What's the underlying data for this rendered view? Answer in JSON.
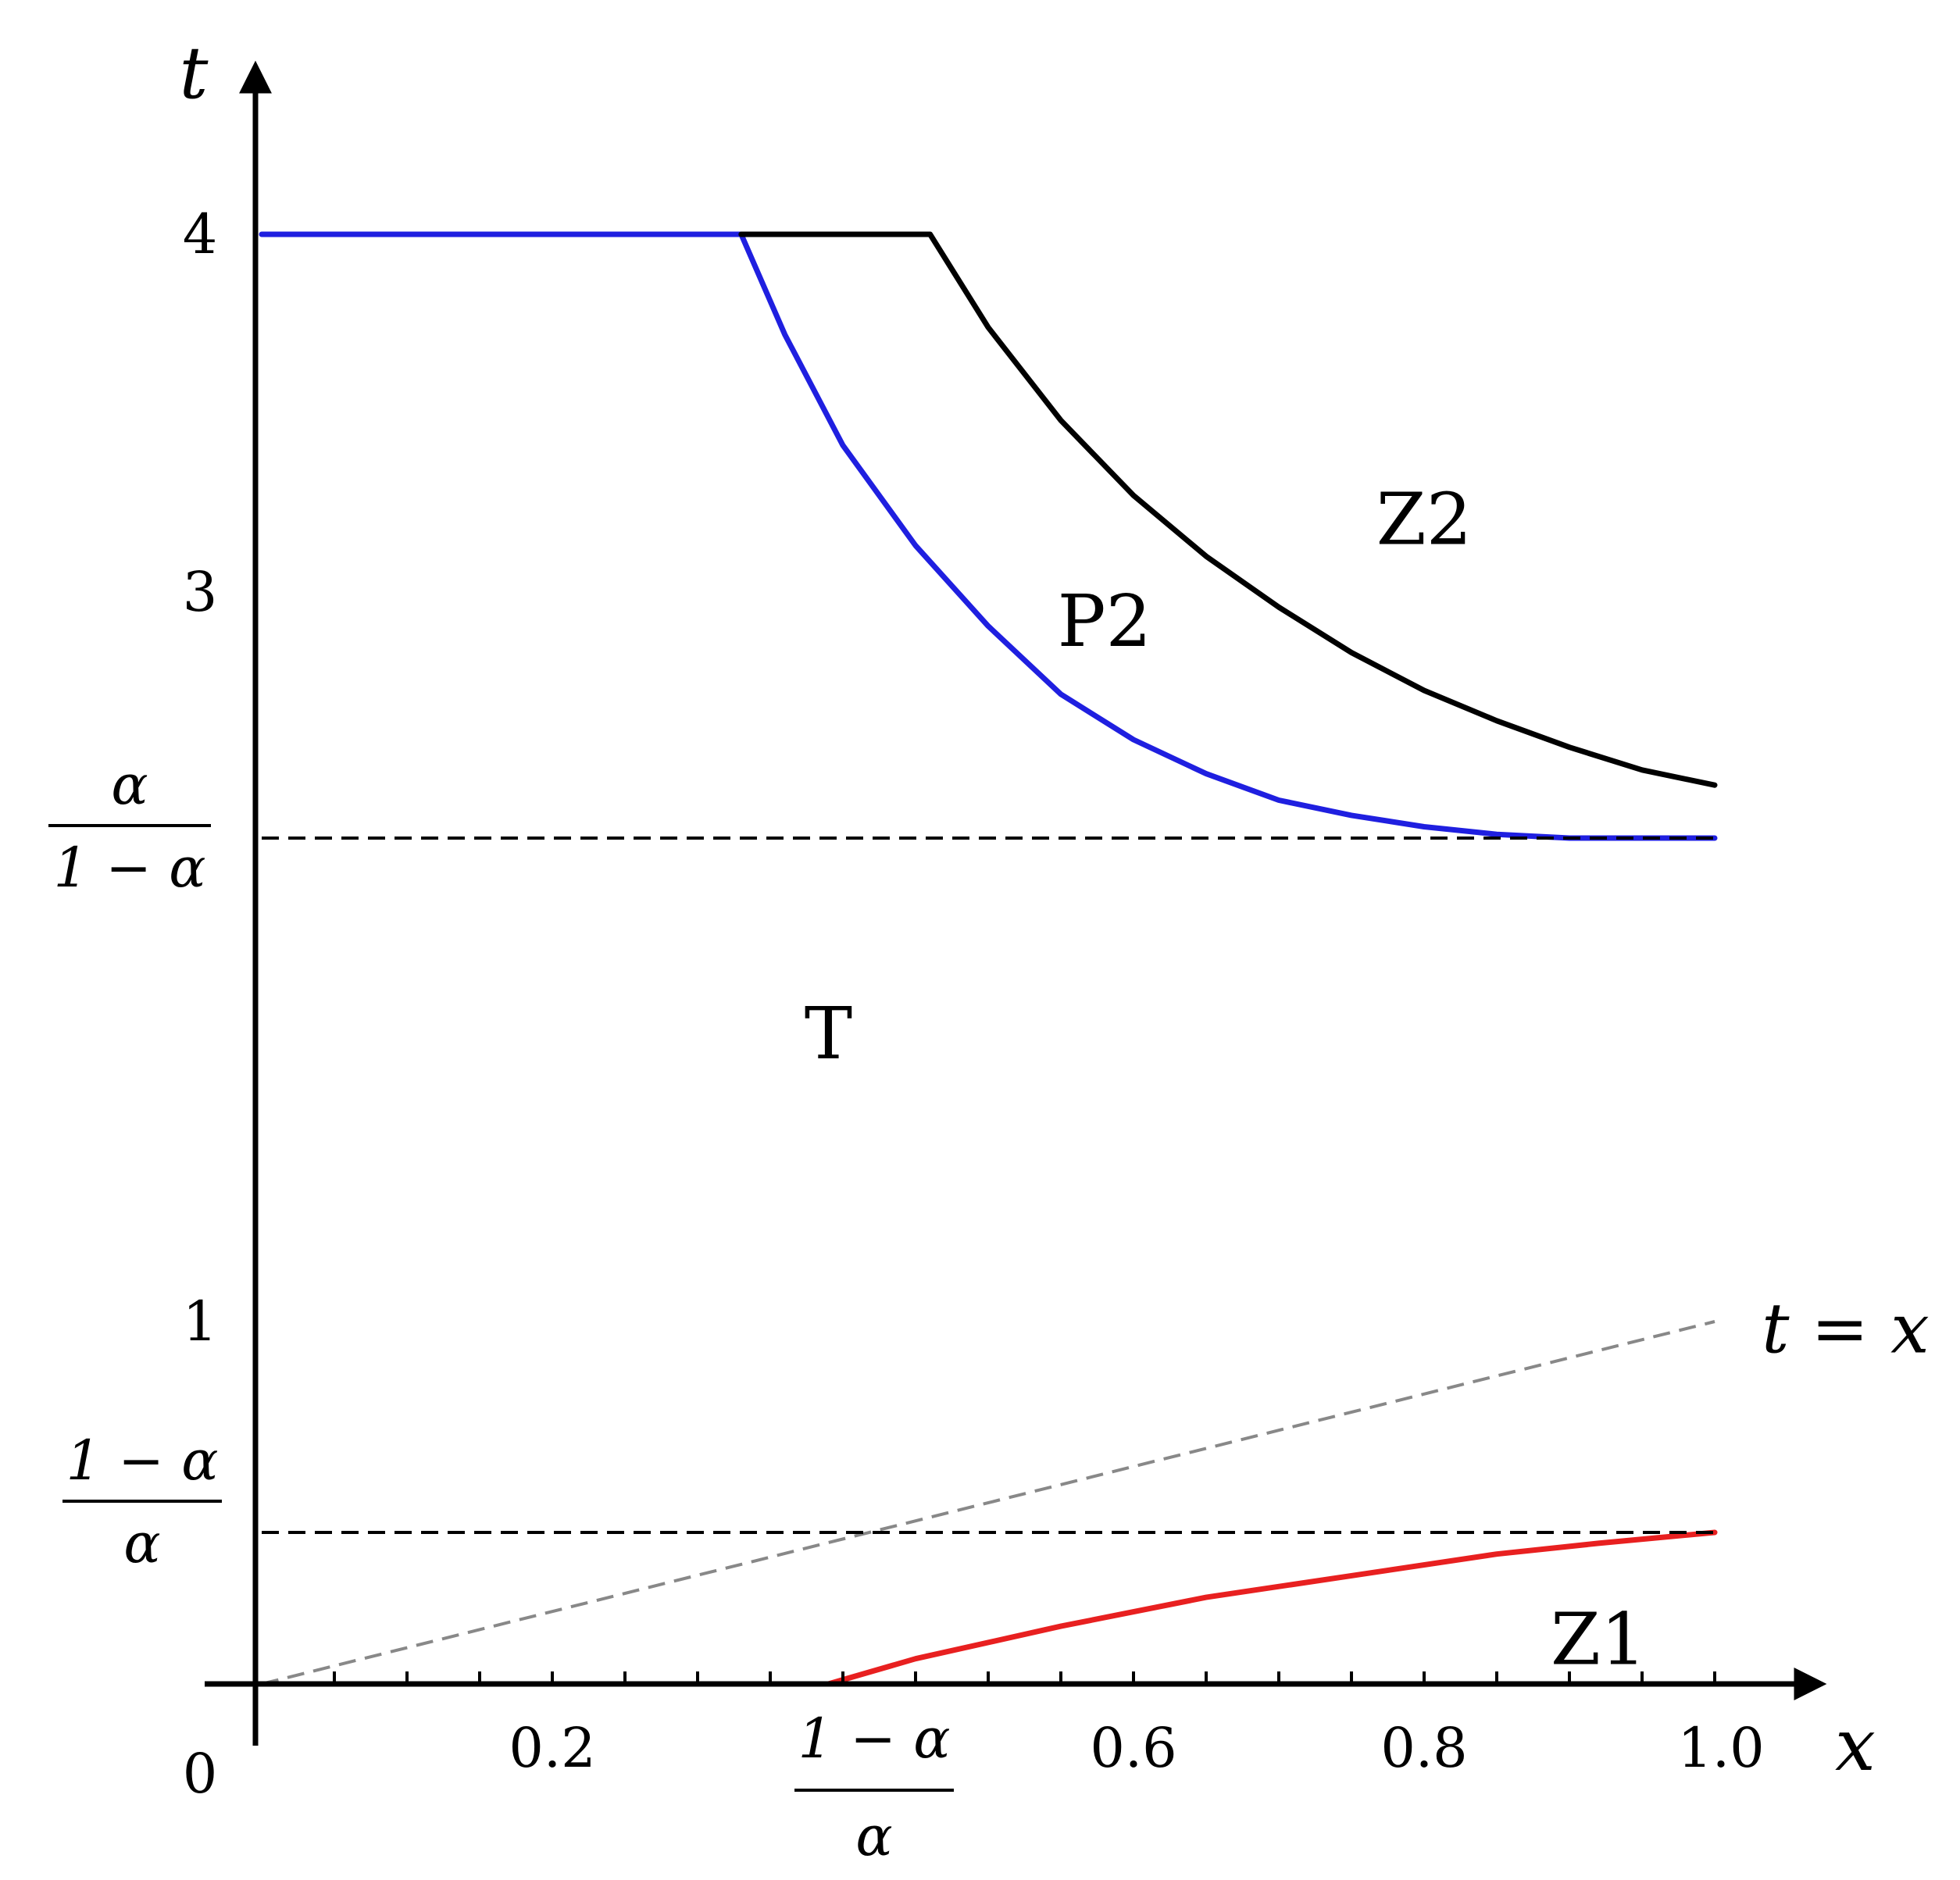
{
  "chart_data": {
    "type": "line",
    "title": "",
    "xlabel": "x",
    "ylabel": "t",
    "xlim": [
      0,
      1.0
    ],
    "x_ticks": [
      {
        "value": 0.2,
        "label": "0.2"
      },
      {
        "value": 0.6,
        "label": "0.6"
      },
      {
        "value": 0.8,
        "label": "0.8"
      },
      {
        "value": 1.0,
        "label": "1.0"
      }
    ],
    "x_special_tick": {
      "value": 0.4,
      "numerator": "1 − α",
      "denominator": "α"
    },
    "y_ticks": [
      {
        "value": 0,
        "label": "0"
      },
      {
        "value": 1,
        "label": "1"
      },
      {
        "value": 3,
        "label": "3"
      },
      {
        "value": 4,
        "label": "4"
      }
    ],
    "y_special_ticks": [
      {
        "value": 2.35,
        "numerator": "α",
        "denominator": "1 − α"
      },
      {
        "value": 0.42,
        "numerator": "1 − α",
        "denominator": "α"
      }
    ],
    "series": [
      {
        "color": "#1f1fe0",
        "style": "solid",
        "points": [
          [
            0,
            4
          ],
          [
            0.33,
            4
          ],
          [
            0.36,
            3.72
          ],
          [
            0.4,
            3.41
          ],
          [
            0.45,
            3.13
          ],
          [
            0.5,
            2.91
          ],
          [
            0.55,
            2.73
          ],
          [
            0.6,
            2.61
          ],
          [
            0.65,
            2.52
          ],
          [
            0.7,
            2.45
          ],
          [
            0.75,
            2.41
          ],
          [
            0.8,
            2.38
          ],
          [
            0.85,
            2.36
          ],
          [
            0.9,
            2.35
          ],
          [
            1.0,
            2.35
          ]
        ]
      },
      {
        "color": "#000000",
        "style": "solid",
        "points": [
          [
            0.33,
            4
          ],
          [
            0.46,
            4
          ],
          [
            0.5,
            3.74
          ],
          [
            0.55,
            3.48
          ],
          [
            0.6,
            3.27
          ],
          [
            0.65,
            3.1
          ],
          [
            0.7,
            2.96
          ],
          [
            0.75,
            2.84
          ],
          [
            0.8,
            2.74
          ],
          [
            0.85,
            2.66
          ],
          [
            0.9,
            2.59
          ],
          [
            0.95,
            2.53
          ],
          [
            1.0,
            2.49
          ]
        ]
      },
      {
        "color": "#e82020",
        "style": "solid",
        "points": [
          [
            0.39,
            0
          ],
          [
            0.45,
            0.07
          ],
          [
            0.55,
            0.16
          ],
          [
            0.65,
            0.24
          ],
          [
            0.75,
            0.3
          ],
          [
            0.85,
            0.36
          ],
          [
            0.92,
            0.39
          ],
          [
            1.0,
            0.42
          ]
        ]
      },
      {
        "color": "#888888",
        "style": "dashed",
        "points": [
          [
            0,
            0
          ],
          [
            1.0,
            1.0
          ]
        ]
      },
      {
        "color": "#000000",
        "style": "dashed",
        "points": [
          [
            0,
            2.35
          ],
          [
            1.0,
            2.35
          ]
        ]
      },
      {
        "color": "#000000",
        "style": "dashed",
        "points": [
          [
            0,
            0.42
          ],
          [
            1.0,
            0.42
          ]
        ]
      }
    ],
    "annotations": [
      {
        "text": "Z2",
        "x": 0.8,
        "y": 3.2
      },
      {
        "text": "P2",
        "x": 0.58,
        "y": 2.92
      },
      {
        "text": "T",
        "x": 0.39,
        "y": 1.8
      },
      {
        "text": "Z1",
        "x": 0.92,
        "y": 0.12
      },
      {
        "text": "t = x",
        "x": 1.09,
        "y": 0.98
      }
    ]
  }
}
